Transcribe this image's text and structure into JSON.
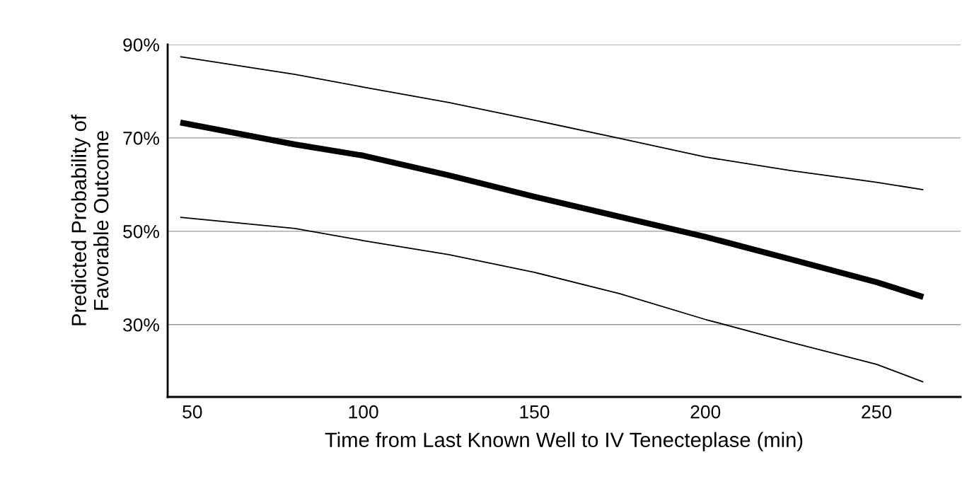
{
  "chart_data": {
    "type": "line",
    "xlabel": "Time from Last Known Well to IV Tenecteplase (min)",
    "ylabel": "Predicted Probability of\nFavorable Outcome",
    "x": [
      46.5,
      80,
      100,
      125,
      150,
      175,
      200,
      225,
      250,
      263.7
    ],
    "series": [
      {
        "color": "#000000",
        "values": [
          73.3,
          68.6,
          66.2,
          62.0,
          57.4,
          53.1,
          48.8,
          44.0,
          39.1,
          35.9
        ]
      },
      {
        "color": "#000000",
        "values": [
          53.0,
          50.6,
          48.0,
          45.0,
          41.2,
          36.6,
          31.1,
          26.2,
          21.5,
          17.7
        ]
      },
      {
        "color": "#000000",
        "values": [
          87.4,
          83.6,
          80.9,
          77.6,
          73.8,
          69.9,
          65.9,
          63.0,
          60.5,
          58.9
        ]
      }
    ],
    "xlim": [
      42.8,
      274.6
    ],
    "ylim": [
      14.5,
      90
    ],
    "xticks": [
      50,
      100,
      150,
      200,
      250
    ],
    "yticks": [
      {
        "value": 30,
        "label": "30%"
      },
      {
        "value": 50,
        "label": "50%"
      },
      {
        "value": 70,
        "label": "70%"
      },
      {
        "value": 90,
        "label": "90%"
      }
    ],
    "grid": "y",
    "legend": false,
    "marker": "none",
    "line_style": "solid"
  }
}
